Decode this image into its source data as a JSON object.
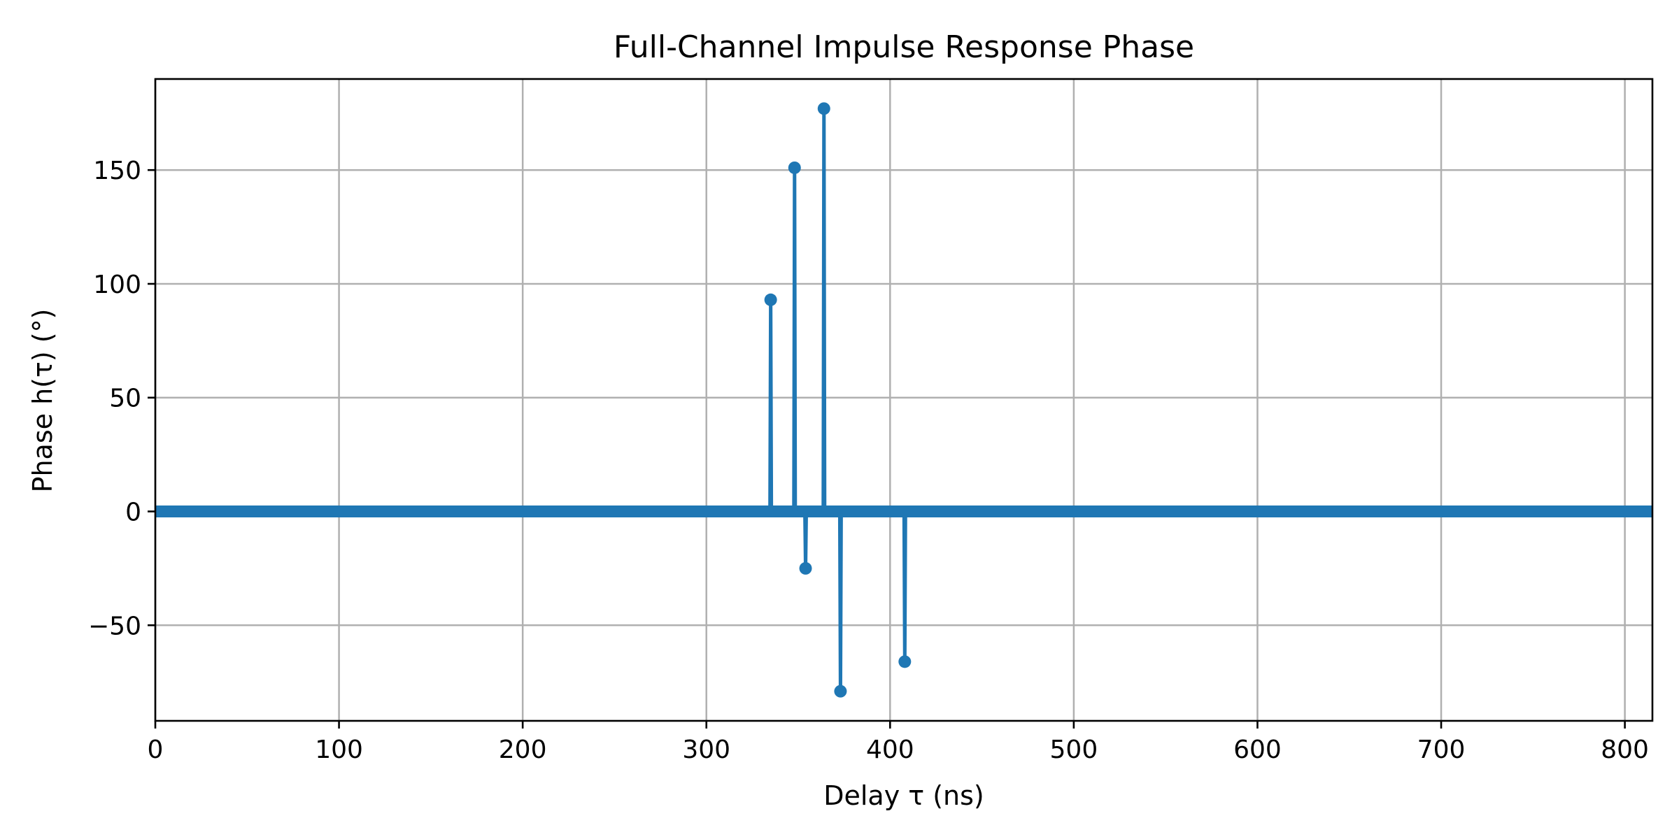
{
  "chart_data": {
    "type": "line",
    "title": "Full-Channel Impulse Response Phase",
    "xlabel": "Delay τ (ns)",
    "ylabel": "Phase h(τ) (°)",
    "xlim": [
      0,
      815
    ],
    "ylim": [
      -92,
      190
    ],
    "xticks": [
      0,
      100,
      200,
      300,
      400,
      500,
      600,
      700,
      800
    ],
    "xtick_labels": [
      "0",
      "100",
      "200",
      "300",
      "400",
      "500",
      "600",
      "700",
      "800"
    ],
    "yticks": [
      -50,
      0,
      50,
      100,
      150
    ],
    "ytick_labels": [
      "−50",
      "0",
      "50",
      "100",
      "150"
    ],
    "grid": true,
    "series_color": "#1f77b4",
    "baseline": {
      "value": 0,
      "x_start": 0,
      "x_end": 815
    },
    "series": [
      {
        "x": [
          335,
          348,
          354,
          364,
          373,
          408
        ],
        "y": [
          93,
          151,
          -25,
          177,
          -79,
          -66
        ],
        "marker": "circle",
        "style": "stem"
      }
    ]
  }
}
